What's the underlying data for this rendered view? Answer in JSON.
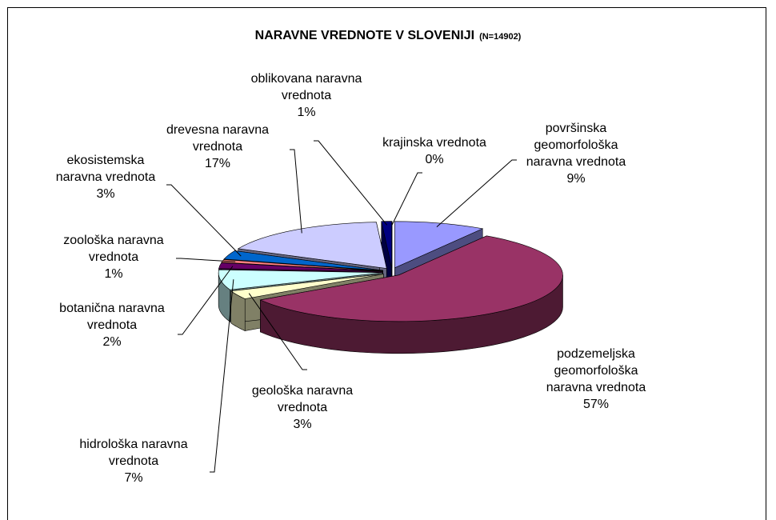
{
  "chart_data": {
    "type": "pie3d",
    "title": "NARAVNE VREDNOTE V SLOVENIJI",
    "subtitle": "(N=14902)",
    "categories": [
      "površinska geomorfološka naravna vrednota",
      "podzemeljska geomorfološka naravna vrednota",
      "geološka naravna vrednota",
      "hidrološka naravna vrednota",
      "botanična naravna vrednota",
      "zoološka naravna vrednota",
      "ekosistemska naravna vrednota",
      "drevesna naravna vrednota",
      "oblikovana naravna vrednota",
      "krajinska vrednota"
    ],
    "values": [
      9,
      57,
      3,
      7,
      2,
      1,
      3,
      17,
      1,
      0
    ],
    "value_labels": [
      "9%",
      "57%",
      "3%",
      "7%",
      "2%",
      "1%",
      "3%",
      "17%",
      "1%",
      "0%"
    ],
    "colors": [
      "#9999ff",
      "#993366",
      "#ffffcc",
      "#ccffff",
      "#660066",
      "#ff8080",
      "#0066cc",
      "#ccccff",
      "#000080",
      "#ff00ff"
    ]
  }
}
